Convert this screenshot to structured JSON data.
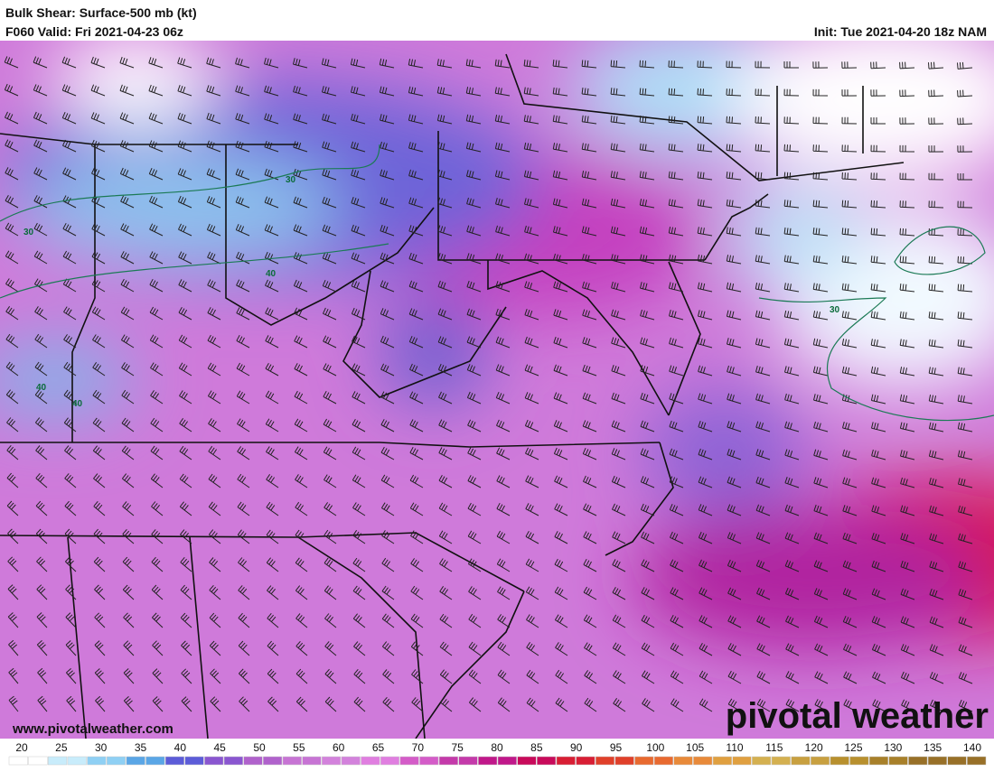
{
  "header": {
    "title": "Bulk Shear: Surface-500 mb (kt)",
    "valid": "F060 Valid: Fri 2021-04-23 06z",
    "init": "Init: Tue 2021-04-20 18z NAM"
  },
  "map": {
    "contour_labels": [
      "30",
      "30",
      "40",
      "30",
      "40",
      "40"
    ],
    "url": "www.pivotalweather.com",
    "logo": "pivotal weather"
  },
  "colorbar": {
    "labels": [
      "20",
      "25",
      "30",
      "35",
      "40",
      "45",
      "50",
      "55",
      "60",
      "65",
      "70",
      "75",
      "80",
      "85",
      "90",
      "95",
      "100",
      "105",
      "110",
      "115",
      "120",
      "125",
      "130",
      "135",
      "140"
    ]
  }
}
